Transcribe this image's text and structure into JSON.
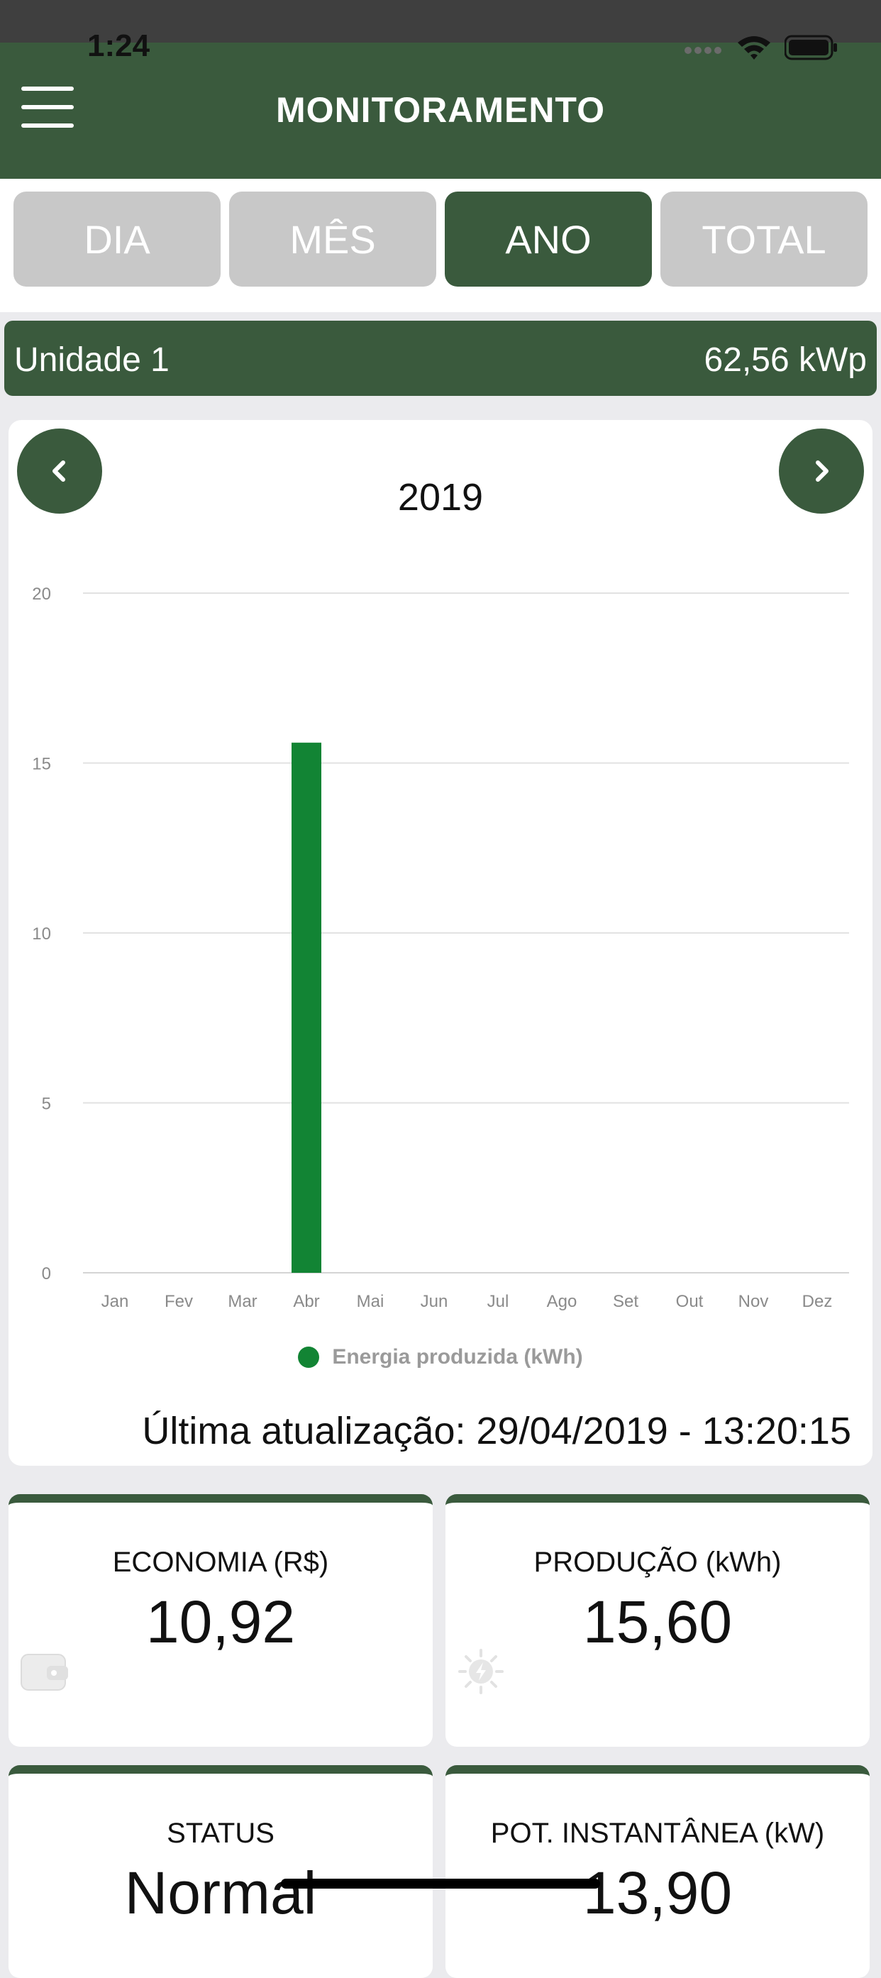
{
  "status_bar": {
    "time": "1:24"
  },
  "header": {
    "title": "MONITORAMENTO",
    "menu_icon": "hamburger-menu-icon"
  },
  "tabs": [
    {
      "label": "DIA",
      "active": false
    },
    {
      "label": "MÊS",
      "active": false
    },
    {
      "label": "ANO",
      "active": true
    },
    {
      "label": "TOTAL",
      "active": false
    }
  ],
  "unit": {
    "name": "Unidade 1",
    "power": "62,56 kWp"
  },
  "chart_nav": {
    "prev_icon": "chevron-left-icon",
    "next_icon": "chevron-right-icon",
    "year": "2019"
  },
  "chart_data": {
    "type": "bar",
    "categories": [
      "Jan",
      "Fev",
      "Mar",
      "Abr",
      "Mai",
      "Jun",
      "Jul",
      "Ago",
      "Set",
      "Out",
      "Nov",
      "Dez"
    ],
    "series": [
      {
        "name": "Energia produzida (kWh)",
        "values": [
          0,
          0,
          0,
          15.6,
          0,
          0,
          0,
          0,
          0,
          0,
          0,
          0
        ],
        "color": "#128434"
      }
    ],
    "title": "2019",
    "ylim": [
      0,
      20
    ],
    "yticks": [
      "0",
      "5",
      "10",
      "15",
      "20"
    ],
    "grid": true,
    "legend": "bottom"
  },
  "last_update": "Última atualização: 29/04/2019 - 13:20:15",
  "cards": {
    "economia": {
      "label": "ECONOMIA (R$)",
      "value": "10,92",
      "icon": "wallet-icon"
    },
    "producao": {
      "label": "PRODUÇÃO (kWh)",
      "value": "15,60",
      "icon": "sun-bolt-icon"
    },
    "status": {
      "label": "STATUS",
      "value": "Normal"
    },
    "potencia": {
      "label": "POT. INSTANTÂNEA (kW)",
      "value": "13,90"
    }
  },
  "colors": {
    "primary": "#3a5a3d",
    "bar": "#128434",
    "tab_inactive": "#c8c8c8"
  }
}
